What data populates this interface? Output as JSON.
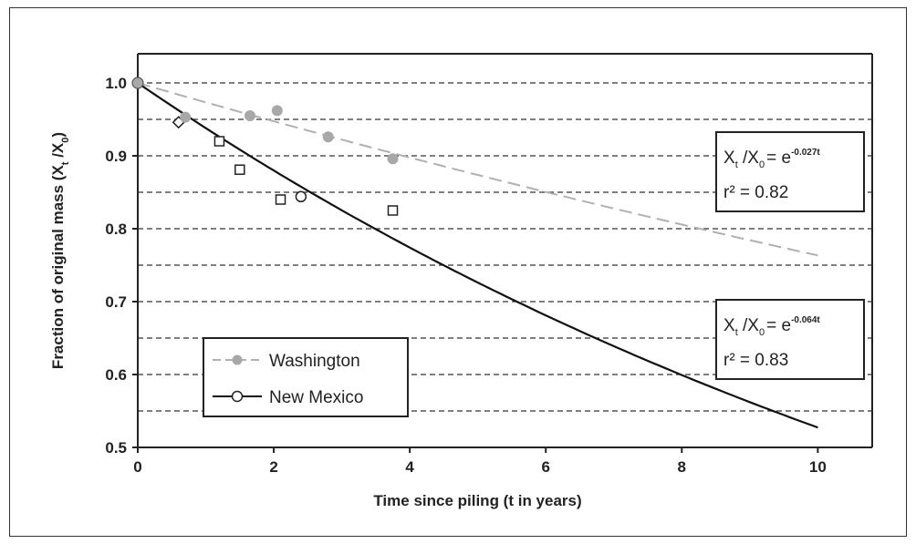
{
  "chart_data": {
    "type": "scatter",
    "xlabel": "Time since piling (t in years)",
    "ylabel": "Fraction of original mass (X_t /X_0)",
    "ylabel_main": "Fraction of original mass (X",
    "ylabel_sub1": "t",
    "ylabel_mid": " /X",
    "ylabel_sub2": "0",
    "ylabel_end": ")",
    "xlim": [
      0,
      10.8
    ],
    "ylim": [
      0.5,
      1.04
    ],
    "x_ticks": [
      0,
      2,
      4,
      6,
      8,
      10
    ],
    "x_tick_labels": [
      "0",
      "2",
      "4",
      "6",
      "8",
      "10"
    ],
    "y_ticks": [
      0.5,
      0.6,
      0.7,
      0.8,
      0.9,
      1.0
    ],
    "y_tick_labels": [
      "0.5",
      "0.6",
      "0.7",
      "0.8",
      "0.9",
      "1.0"
    ],
    "grid_y_values": [
      0.55,
      0.6,
      0.65,
      0.7,
      0.75,
      0.8,
      0.85,
      0.9,
      0.95,
      1.0
    ],
    "grid": "horizontal dashed",
    "series": [
      {
        "name": "Washington",
        "color": "#a8a8a8",
        "marker": "filled-circle",
        "points": [
          [
            0,
            1.0
          ],
          [
            0.7,
            0.953
          ],
          [
            1.65,
            0.955
          ],
          [
            2.05,
            0.962
          ],
          [
            2.8,
            0.926
          ],
          [
            3.75,
            0.896
          ]
        ],
        "fit": {
          "type": "exponential",
          "k": 0.027,
          "x_range": [
            0,
            10
          ],
          "style": "dashed",
          "color": "#b0b0b0"
        }
      },
      {
        "name": "New Mexico",
        "color": "#222222",
        "marker": "open-mixed",
        "points": [
          [
            0,
            1.0
          ],
          [
            0.6,
            0.946
          ],
          [
            1.2,
            0.92
          ],
          [
            1.5,
            0.881
          ],
          [
            2.1,
            0.84
          ],
          [
            2.4,
            0.844
          ],
          [
            3.75,
            0.825
          ]
        ],
        "fit": {
          "type": "exponential",
          "k": 0.064,
          "x_range": [
            0,
            10
          ],
          "style": "solid",
          "color": "#111111"
        }
      }
    ],
    "annotations": [
      {
        "lhs": "X",
        "sub1": "t",
        "mid": " /X",
        "sub2": "0",
        "eq": "= e",
        "sup": "-0.027t",
        "r2": "r² = 0.82"
      },
      {
        "lhs": "X",
        "sub1": "t",
        "mid": " /X",
        "sub2": "0",
        "eq": "= e",
        "sup": "-0.064t",
        "r2": "r² = 0.83"
      }
    ],
    "legend": {
      "placement": "bottom-left",
      "entries": [
        "Washington",
        "New Mexico"
      ]
    }
  }
}
